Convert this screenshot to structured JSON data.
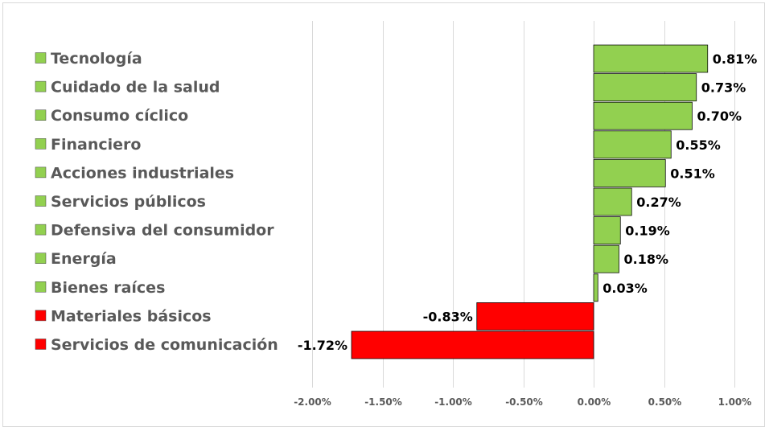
{
  "chart_data": {
    "type": "bar",
    "orientation": "horizontal",
    "categories": [
      "Tecnología",
      "Cuidado de la salud",
      "Consumo cíclico",
      "Financiero",
      "Acciones industriales",
      "Servicios públicos",
      "Defensiva del consumidor",
      "Energía",
      "Bienes raíces",
      "Materiales básicos",
      "Servicios de comunicación"
    ],
    "values": [
      0.81,
      0.73,
      0.7,
      0.55,
      0.51,
      0.27,
      0.19,
      0.18,
      0.03,
      -0.83,
      -1.72
    ],
    "data_labels": [
      "0.81%",
      "0.73%",
      "0.70%",
      "0.55%",
      "0.51%",
      "0.27%",
      "0.19%",
      "0.18%",
      "0.03%",
      "-0.83%",
      "-1.72%"
    ],
    "x_ticks": [
      -2.0,
      -1.5,
      -1.0,
      -0.5,
      0.0,
      0.5,
      1.0
    ],
    "x_tick_labels": [
      "-2.00%",
      "-1.50%",
      "-1.00%",
      "-0.50%",
      "0.00%",
      "0.50%",
      "1.00%"
    ],
    "xlim": [
      -2.0,
      1.0
    ],
    "grid": "vertical",
    "legend": "left",
    "title": "",
    "xlabel": "",
    "ylabel": "",
    "colors": {
      "positive": "#92d050",
      "negative": "#ff0000",
      "bar_border": "#000000",
      "gridline": "#d9d9d9",
      "category_text": "#595959",
      "tick_text": "#595959",
      "data_label_text": "#000000"
    }
  }
}
